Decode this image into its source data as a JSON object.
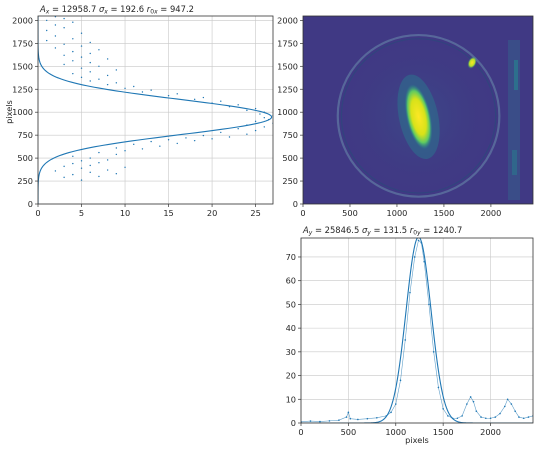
{
  "colors": {
    "series": "#1f77b4",
    "grid": "#c8c8c8",
    "image_background": "#3d3b83",
    "image_hot": "#fde725"
  },
  "chart_data": [
    {
      "id": "x-profile",
      "type": "scatter",
      "title_var": "A",
      "title_sub": "x",
      "title_rest": " = 12958.7 σ",
      "title_full": "A_x = 12958.7 σ_x = 192.6 r_0x = 947.2",
      "amplitude": 12958.7,
      "sigma": 192.6,
      "center": 947.2,
      "orientation": "horizontal-value-axis, vertical-pixel-axis",
      "xlim": [
        0,
        27
      ],
      "ylim": [
        2048,
        0
      ],
      "xticks": [
        "0",
        "5",
        "10",
        "15",
        "20",
        "25"
      ],
      "yticks": [
        "0",
        "250",
        "500",
        "750",
        "1000",
        "1250",
        "1500",
        "1750",
        "2000"
      ],
      "xlabel": "",
      "ylabel": "pixels",
      "grid": true,
      "series": [
        {
          "kind": "scatter",
          "description_points": "noisy column sums across rows 230-2048, peak near 26.5 at row ~950, secondary lobe ~5 around rows 1400-1700"
        },
        {
          "kind": "line",
          "fit": "gaussian",
          "amplitude": 12958.7,
          "sigma": 192.6,
          "center": 947.2
        }
      ],
      "points": [
        [
          5,
          260
        ],
        [
          3,
          290
        ],
        [
          7,
          300
        ],
        [
          4,
          320
        ],
        [
          9,
          330
        ],
        [
          6,
          345
        ],
        [
          2,
          360
        ],
        [
          8,
          370
        ],
        [
          5,
          390
        ],
        [
          10,
          400
        ],
        [
          3,
          410
        ],
        [
          6,
          420
        ],
        [
          4,
          440
        ],
        [
          7,
          450
        ],
        [
          5,
          470
        ],
        [
          8,
          480
        ],
        [
          6,
          500
        ],
        [
          4,
          520
        ],
        [
          9,
          540
        ],
        [
          7,
          560
        ],
        [
          10,
          580
        ],
        [
          12,
          600
        ],
        [
          9,
          610
        ],
        [
          14,
          630
        ],
        [
          11,
          650
        ],
        [
          16,
          660
        ],
        [
          13,
          680
        ],
        [
          18,
          690
        ],
        [
          15,
          700
        ],
        [
          20,
          710
        ],
        [
          17,
          720
        ],
        [
          22,
          730
        ],
        [
          19,
          745
        ],
        [
          24,
          760
        ],
        [
          21,
          780
        ],
        [
          25,
          800
        ],
        [
          23,
          820
        ],
        [
          26,
          840
        ],
        [
          24,
          860
        ],
        [
          27,
          880
        ],
        [
          25,
          900
        ],
        [
          26.5,
          920
        ],
        [
          26,
          940
        ],
        [
          27,
          960
        ],
        [
          25.5,
          980
        ],
        [
          26,
          1000
        ],
        [
          24,
          1020
        ],
        [
          25,
          1040
        ],
        [
          22,
          1060
        ],
        [
          23,
          1080
        ],
        [
          20,
          1100
        ],
        [
          21,
          1120
        ],
        [
          18,
          1140
        ],
        [
          19,
          1160
        ],
        [
          15,
          1180
        ],
        [
          16,
          1200
        ],
        [
          12,
          1220
        ],
        [
          13,
          1240
        ],
        [
          10,
          1260
        ],
        [
          11,
          1280
        ],
        [
          8,
          1300
        ],
        [
          9,
          1320
        ],
        [
          6,
          1340
        ],
        [
          7,
          1360
        ],
        [
          5,
          1380
        ],
        [
          8,
          1400
        ],
        [
          4,
          1420
        ],
        [
          6,
          1440
        ],
        [
          9,
          1460
        ],
        [
          5,
          1480
        ],
        [
          7,
          1500
        ],
        [
          3,
          1520
        ],
        [
          6,
          1540
        ],
        [
          4,
          1560
        ],
        [
          8,
          1580
        ],
        [
          5,
          1600
        ],
        [
          3,
          1620
        ],
        [
          6,
          1640
        ],
        [
          4,
          1660
        ],
        [
          7,
          1680
        ],
        [
          2,
          1700
        ],
        [
          5,
          1720
        ],
        [
          3,
          1740
        ],
        [
          6,
          1760
        ],
        [
          1,
          1780
        ],
        [
          4,
          1800
        ],
        [
          2,
          1830
        ],
        [
          5,
          1860
        ],
        [
          1,
          1890
        ],
        [
          3,
          1920
        ],
        [
          2,
          1950
        ],
        [
          4,
          1980
        ],
        [
          1,
          2000
        ],
        [
          3,
          2020
        ],
        [
          2,
          2040
        ]
      ]
    },
    {
      "id": "camera-image",
      "type": "heatmap",
      "title": "",
      "xlim": [
        0,
        2448
      ],
      "ylim": [
        2048,
        0
      ],
      "xticks": [
        "0",
        "500",
        "1000",
        "1500",
        "2000"
      ],
      "yticks": [
        "0",
        "250",
        "500",
        "750",
        "1000",
        "1250",
        "1500",
        "1750",
        "2000"
      ],
      "colormap": "viridis",
      "spots": [
        {
          "name": "main",
          "cx": 1230,
          "cy": 950,
          "rx": 130,
          "ry": 360
        },
        {
          "name": "secondary",
          "cx": 1800,
          "cy": 1540,
          "rx": 45,
          "ry": 70
        }
      ],
      "aperture": {
        "cx": 1230,
        "cy": 960,
        "r": 860
      }
    },
    {
      "id": "y-profile",
      "type": "line",
      "title_var": "A",
      "title_sub": "y",
      "title_full": "A_y = 25846.5 σ_y = 131.5 r_0y = 1240.7",
      "amplitude": 25846.5,
      "sigma": 131.5,
      "center": 1240.7,
      "xlim": [
        0,
        2448
      ],
      "ylim": [
        0,
        78
      ],
      "xticks": [
        "0",
        "500",
        "1000",
        "1500",
        "2000"
      ],
      "yticks": [
        "0",
        "10",
        "20",
        "30",
        "40",
        "50",
        "60",
        "70"
      ],
      "xlabel": "pixels",
      "ylabel": "",
      "grid": true,
      "series": [
        {
          "kind": "data",
          "points": [
            [
              0,
              0.5
            ],
            [
              100,
              0.8
            ],
            [
              200,
              0.6
            ],
            [
              300,
              0.9
            ],
            [
              400,
              1.2
            ],
            [
              480,
              2.5
            ],
            [
              500,
              4.5
            ],
            [
              520,
              1.8
            ],
            [
              600,
              1.5
            ],
            [
              700,
              1.8
            ],
            [
              800,
              2.2
            ],
            [
              900,
              3.0
            ],
            [
              950,
              4.5
            ],
            [
              1000,
              8
            ],
            [
              1050,
              18
            ],
            [
              1100,
              35
            ],
            [
              1150,
              55
            ],
            [
              1200,
              70
            ],
            [
              1240,
              77
            ],
            [
              1270,
              76
            ],
            [
              1300,
              68
            ],
            [
              1350,
              50
            ],
            [
              1400,
              30
            ],
            [
              1450,
              15
            ],
            [
              1500,
              6
            ],
            [
              1550,
              3
            ],
            [
              1600,
              2
            ],
            [
              1650,
              2
            ],
            [
              1700,
              3
            ],
            [
              1750,
              8
            ],
            [
              1790,
              11
            ],
            [
              1820,
              9
            ],
            [
              1850,
              5
            ],
            [
              1900,
              2.5
            ],
            [
              1950,
              2
            ],
            [
              2000,
              2
            ],
            [
              2050,
              2.5
            ],
            [
              2100,
              4
            ],
            [
              2150,
              7
            ],
            [
              2180,
              10
            ],
            [
              2220,
              8
            ],
            [
              2260,
              5
            ],
            [
              2300,
              2.5
            ],
            [
              2350,
              2
            ],
            [
              2400,
              2.5
            ],
            [
              2448,
              3
            ]
          ]
        },
        {
          "kind": "line",
          "fit": "gaussian",
          "amplitude": 25846.5,
          "sigma": 131.5,
          "center": 1240.7
        }
      ]
    }
  ],
  "titles": {
    "x_profile": "A_x = 12958.7 σ_x = 192.6 r_0x = 947.2",
    "y_profile": "A_y = 25846.5 σ_y = 131.5 r_0y = 1240.7"
  },
  "labels": {
    "x_profile_ylabel": "pixels",
    "y_profile_xlabel": "pixels"
  }
}
